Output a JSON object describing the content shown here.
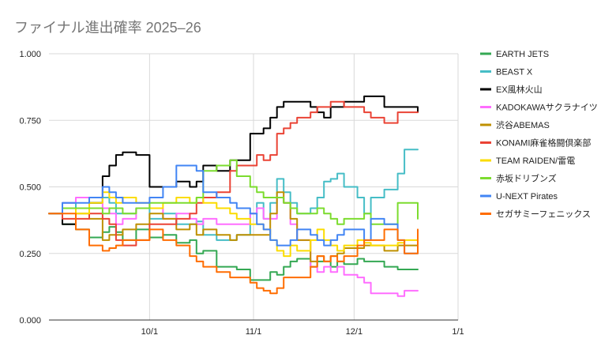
{
  "chart_data": {
    "type": "line",
    "title": "ファイナル進出確率 2025–26",
    "xlabel": "",
    "ylabel": "",
    "x_ticks": [
      "10/1",
      "11/1",
      "12/1",
      "1/1"
    ],
    "x_tick_days": [
      30,
      61,
      91,
      122
    ],
    "xlim_days": [
      0,
      122
    ],
    "y_ticks": [
      "0.000",
      "0.250",
      "0.500",
      "0.750",
      "1.000"
    ],
    "ylim": [
      0,
      1
    ],
    "grid": true,
    "legend_position": "right",
    "series": [
      {
        "name": "EARTH JETS",
        "color": "#34a853",
        "x": [
          0,
          4,
          8,
          12,
          16,
          18,
          20,
          22,
          26,
          30,
          34,
          38,
          42,
          44,
          46,
          50,
          54,
          56,
          60,
          62,
          64,
          66,
          68,
          70,
          72,
          74,
          78,
          80,
          82,
          84,
          86,
          88,
          92,
          94,
          96,
          100,
          104,
          106,
          110
        ],
        "values": [
          0.4,
          0.36,
          0.34,
          0.31,
          0.33,
          0.35,
          0.33,
          0.3,
          0.34,
          0.31,
          0.32,
          0.29,
          0.3,
          0.25,
          0.26,
          0.2,
          0.2,
          0.19,
          0.15,
          0.15,
          0.15,
          0.18,
          0.17,
          0.2,
          0.22,
          0.23,
          0.2,
          0.22,
          0.22,
          0.2,
          0.22,
          0.21,
          0.23,
          0.22,
          0.22,
          0.2,
          0.19,
          0.19,
          0.19
        ]
      },
      {
        "name": "BEAST X",
        "color": "#46bdc6",
        "x": [
          0,
          4,
          8,
          12,
          16,
          18,
          20,
          22,
          26,
          30,
          34,
          38,
          42,
          44,
          46,
          50,
          54,
          56,
          60,
          62,
          64,
          66,
          68,
          70,
          72,
          74,
          78,
          80,
          82,
          84,
          86,
          88,
          92,
          94,
          96,
          100,
          104,
          106,
          110
        ],
        "values": [
          0.4,
          0.44,
          0.42,
          0.44,
          0.46,
          0.44,
          0.4,
          0.4,
          0.42,
          0.38,
          0.4,
          0.36,
          0.36,
          0.37,
          0.32,
          0.3,
          0.3,
          0.32,
          0.4,
          0.44,
          0.38,
          0.44,
          0.53,
          0.48,
          0.44,
          0.4,
          0.42,
          0.46,
          0.52,
          0.53,
          0.55,
          0.5,
          0.46,
          0.4,
          0.46,
          0.49,
          0.55,
          0.64,
          0.64
        ]
      },
      {
        "name": "EX風林火山",
        "color": "#000000",
        "x": [
          0,
          4,
          8,
          12,
          16,
          18,
          20,
          22,
          26,
          30,
          34,
          38,
          42,
          44,
          46,
          50,
          54,
          56,
          60,
          62,
          64,
          66,
          68,
          70,
          72,
          74,
          78,
          80,
          82,
          84,
          86,
          88,
          92,
          94,
          96,
          100,
          104,
          106,
          110
        ],
        "values": [
          0.4,
          0.36,
          0.42,
          0.44,
          0.54,
          0.58,
          0.62,
          0.63,
          0.62,
          0.5,
          0.5,
          0.52,
          0.5,
          0.52,
          0.58,
          0.56,
          0.6,
          0.6,
          0.7,
          0.7,
          0.72,
          0.76,
          0.8,
          0.82,
          0.82,
          0.82,
          0.8,
          0.78,
          0.76,
          0.8,
          0.8,
          0.82,
          0.82,
          0.84,
          0.84,
          0.8,
          0.8,
          0.8,
          0.78
        ]
      },
      {
        "name": "KADOKAWAサクラナイツ",
        "color": "#ff6dff",
        "x": [
          0,
          4,
          8,
          12,
          16,
          18,
          20,
          22,
          26,
          30,
          34,
          38,
          42,
          44,
          46,
          50,
          54,
          56,
          60,
          62,
          64,
          66,
          68,
          70,
          72,
          74,
          78,
          80,
          82,
          84,
          86,
          88,
          92,
          94,
          96,
          100,
          104,
          106,
          110
        ],
        "values": [
          0.4,
          0.44,
          0.46,
          0.46,
          0.42,
          0.4,
          0.36,
          0.38,
          0.42,
          0.42,
          0.38,
          0.4,
          0.38,
          0.36,
          0.38,
          0.36,
          0.36,
          0.36,
          0.4,
          0.42,
          0.38,
          0.38,
          0.46,
          0.44,
          0.36,
          0.3,
          0.2,
          0.18,
          0.2,
          0.18,
          0.2,
          0.17,
          0.16,
          0.14,
          0.1,
          0.1,
          0.09,
          0.11,
          0.11
        ]
      },
      {
        "name": "渋谷ABEMAS",
        "color": "#bf9000",
        "x": [
          0,
          4,
          8,
          12,
          16,
          18,
          20,
          22,
          26,
          30,
          34,
          38,
          42,
          44,
          46,
          50,
          54,
          56,
          60,
          62,
          64,
          66,
          68,
          70,
          72,
          74,
          78,
          80,
          82,
          84,
          86,
          88,
          92,
          94,
          96,
          100,
          104,
          106,
          110
        ],
        "values": [
          0.4,
          0.42,
          0.4,
          0.38,
          0.3,
          0.32,
          0.32,
          0.34,
          0.36,
          0.4,
          0.38,
          0.34,
          0.36,
          0.32,
          0.34,
          0.32,
          0.3,
          0.32,
          0.32,
          0.32,
          0.32,
          0.4,
          0.48,
          0.44,
          0.38,
          0.3,
          0.22,
          0.24,
          0.22,
          0.24,
          0.25,
          0.27,
          0.27,
          0.28,
          0.28,
          0.26,
          0.28,
          0.28,
          0.27
        ]
      },
      {
        "name": "KONAMI麻雀格闘倶楽部",
        "color": "#ea4335",
        "x": [
          0,
          4,
          8,
          12,
          16,
          18,
          20,
          22,
          26,
          30,
          34,
          38,
          42,
          44,
          46,
          50,
          54,
          56,
          60,
          62,
          64,
          66,
          68,
          70,
          72,
          74,
          78,
          80,
          82,
          84,
          86,
          88,
          92,
          94,
          96,
          100,
          104,
          106,
          110
        ],
        "values": [
          0.4,
          0.38,
          0.38,
          0.4,
          0.38,
          0.36,
          0.3,
          0.28,
          0.3,
          0.36,
          0.36,
          0.38,
          0.4,
          0.44,
          0.46,
          0.48,
          0.56,
          0.58,
          0.58,
          0.62,
          0.6,
          0.62,
          0.7,
          0.72,
          0.74,
          0.76,
          0.78,
          0.8,
          0.8,
          0.82,
          0.82,
          0.8,
          0.8,
          0.78,
          0.76,
          0.74,
          0.78,
          0.78,
          0.78
        ]
      },
      {
        "name": "TEAM RAIDEN/雷電",
        "color": "#fbdc00",
        "x": [
          0,
          4,
          8,
          12,
          16,
          18,
          20,
          22,
          26,
          30,
          34,
          38,
          42,
          44,
          46,
          50,
          54,
          56,
          60,
          62,
          64,
          66,
          68,
          70,
          72,
          74,
          78,
          80,
          82,
          84,
          86,
          88,
          92,
          94,
          96,
          100,
          104,
          106,
          110
        ],
        "values": [
          0.4,
          0.42,
          0.4,
          0.44,
          0.48,
          0.46,
          0.44,
          0.46,
          0.44,
          0.42,
          0.44,
          0.46,
          0.44,
          0.46,
          0.44,
          0.42,
          0.4,
          0.38,
          0.36,
          0.36,
          0.34,
          0.3,
          0.26,
          0.24,
          0.28,
          0.26,
          0.3,
          0.34,
          0.3,
          0.28,
          0.26,
          0.28,
          0.3,
          0.29,
          0.28,
          0.28,
          0.29,
          0.3,
          0.3
        ]
      },
      {
        "name": "赤坂ドリブンズ",
        "color": "#7cdc2f",
        "x": [
          0,
          4,
          8,
          12,
          16,
          18,
          20,
          22,
          26,
          30,
          34,
          38,
          42,
          44,
          46,
          50,
          54,
          56,
          60,
          62,
          64,
          66,
          68,
          70,
          72,
          74,
          78,
          80,
          82,
          84,
          86,
          88,
          92,
          94,
          96,
          100,
          104,
          106,
          110
        ],
        "values": [
          0.4,
          0.42,
          0.42,
          0.42,
          0.4,
          0.42,
          0.42,
          0.4,
          0.42,
          0.44,
          0.44,
          0.44,
          0.44,
          0.46,
          0.56,
          0.58,
          0.6,
          0.54,
          0.5,
          0.48,
          0.46,
          0.46,
          0.46,
          0.44,
          0.42,
          0.4,
          0.4,
          0.42,
          0.4,
          0.38,
          0.36,
          0.38,
          0.38,
          0.4,
          0.36,
          0.36,
          0.44,
          0.44,
          0.38
        ]
      },
      {
        "name": "U-NEXT Pirates",
        "color": "#4285f4",
        "x": [
          0,
          4,
          8,
          12,
          16,
          18,
          20,
          22,
          26,
          30,
          34,
          38,
          42,
          44,
          46,
          50,
          54,
          56,
          60,
          62,
          64,
          66,
          68,
          70,
          72,
          74,
          78,
          80,
          82,
          84,
          86,
          88,
          92,
          94,
          96,
          100,
          104,
          106,
          110
        ],
        "values": [
          0.4,
          0.44,
          0.44,
          0.46,
          0.5,
          0.48,
          0.46,
          0.44,
          0.44,
          0.46,
          0.5,
          0.58,
          0.58,
          0.56,
          0.48,
          0.46,
          0.44,
          0.42,
          0.4,
          0.36,
          0.34,
          0.3,
          0.28,
          0.28,
          0.3,
          0.34,
          0.32,
          0.3,
          0.28,
          0.3,
          0.32,
          0.34,
          0.34,
          0.3,
          0.38,
          0.36,
          0.3,
          0.25,
          0.25
        ]
      },
      {
        "name": "セガサミーフェニックス",
        "color": "#ff6d01",
        "x": [
          0,
          4,
          8,
          12,
          16,
          18,
          20,
          22,
          26,
          30,
          34,
          38,
          42,
          44,
          46,
          50,
          54,
          56,
          60,
          62,
          64,
          66,
          68,
          70,
          72,
          74,
          78,
          80,
          82,
          84,
          86,
          88,
          92,
          94,
          96,
          100,
          104,
          106,
          110
        ],
        "values": [
          0.4,
          0.4,
          0.34,
          0.28,
          0.26,
          0.27,
          0.28,
          0.3,
          0.3,
          0.34,
          0.3,
          0.28,
          0.24,
          0.22,
          0.2,
          0.18,
          0.16,
          0.16,
          0.14,
          0.12,
          0.11,
          0.1,
          0.12,
          0.16,
          0.16,
          0.16,
          0.2,
          0.24,
          0.22,
          0.24,
          0.22,
          0.24,
          0.28,
          0.3,
          0.3,
          0.34,
          0.3,
          0.25,
          0.34
        ]
      }
    ]
  }
}
